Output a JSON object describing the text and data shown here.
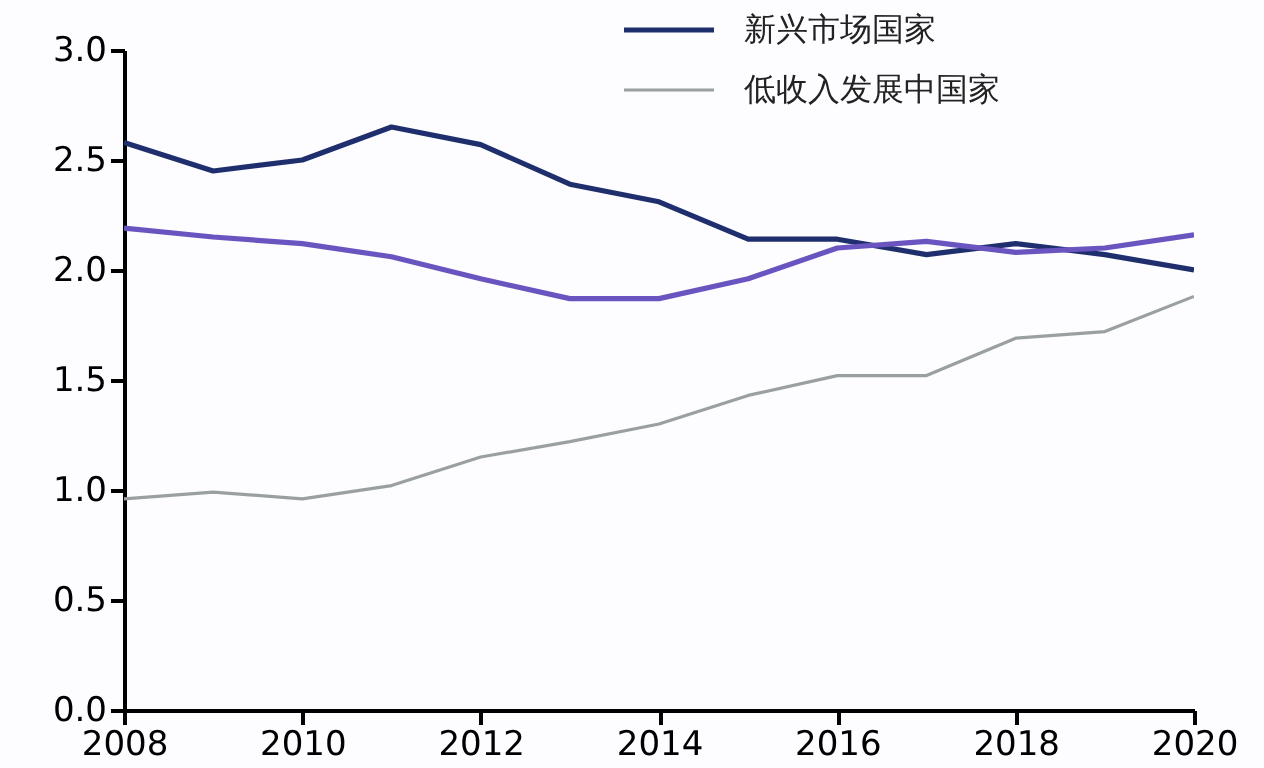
{
  "chart_data": {
    "type": "line",
    "x": [
      2008,
      2009,
      2010,
      2011,
      2012,
      2013,
      2014,
      2015,
      2016,
      2017,
      2018,
      2019,
      2020
    ],
    "series": [
      {
        "name": "新兴市场国家",
        "color": "#1f2f6e",
        "values": [
          2.58,
          2.45,
          2.5,
          2.65,
          2.57,
          2.39,
          2.31,
          2.14,
          2.14,
          2.07,
          2.12,
          2.07,
          2.0
        ]
      },
      {
        "color": "#6a55c0",
        "values": [
          2.19,
          2.15,
          2.12,
          2.06,
          1.96,
          1.87,
          1.87,
          1.96,
          2.1,
          2.13,
          2.08,
          2.1,
          2.16
        ]
      },
      {
        "name": "低收入发展中国家",
        "color": "#9aa0a0",
        "values": [
          0.96,
          0.99,
          0.96,
          1.02,
          1.15,
          1.22,
          1.3,
          1.43,
          1.52,
          1.52,
          1.69,
          1.72,
          1.88
        ]
      }
    ],
    "xlim": [
      2008,
      2020
    ],
    "xticks": [
      2008,
      2010,
      2012,
      2014,
      2016,
      2018,
      2020
    ],
    "ylim": [
      0,
      3
    ],
    "yticks": [
      {
        "value": 0,
        "label": "0.0"
      },
      {
        "value": 0.5,
        "label": "0.5"
      },
      {
        "value": 1,
        "label": "1.0"
      },
      {
        "value": 1.5,
        "label": "1.5"
      },
      {
        "value": 2,
        "label": "2.0"
      },
      {
        "value": 2.5,
        "label": "2.5"
      },
      {
        "value": 3,
        "label": "3.0"
      }
    ],
    "grid": false,
    "legend": "top right",
    "marker": "none",
    "line_style": "solid"
  }
}
